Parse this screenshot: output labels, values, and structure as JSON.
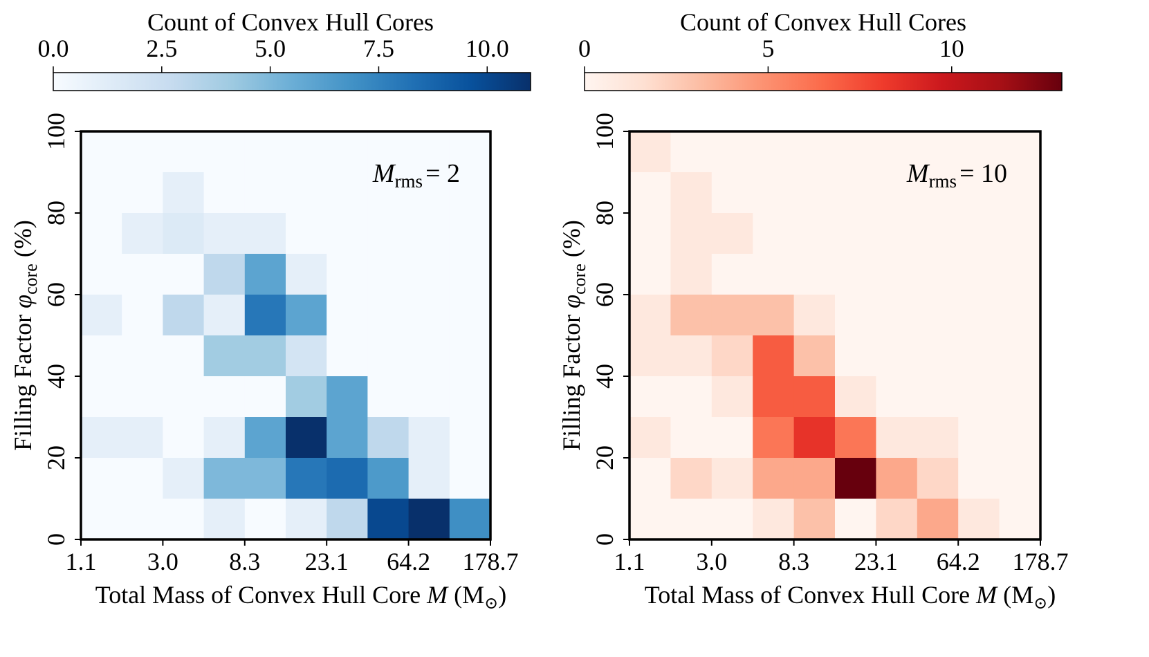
{
  "chart_data": [
    {
      "type": "heatmap",
      "colormap": "Blues",
      "colormap_stops": [
        "#f7fbff",
        "#deebf7",
        "#c6dbef",
        "#9ecae1",
        "#6baed6",
        "#4292c6",
        "#2171b5",
        "#08519c",
        "#08306b"
      ],
      "annotation": {
        "symbol": "M",
        "subscript": "rms",
        "text": "= 2"
      },
      "colorbar": {
        "label": "Count of Convex Hull Cores",
        "range": [
          0,
          11
        ],
        "ticks": [
          0,
          2.5,
          5,
          7.5,
          10
        ],
        "tick_labels": [
          "0.0",
          "2.5",
          "5.0",
          "7.5",
          "10.0"
        ]
      },
      "xlabel": {
        "prefix": "Total Mass of Convex Hull Core ",
        "symbol": "M",
        "units_open": " (M",
        "sun_symbol": "⊙",
        "units_close": ")"
      },
      "ylabel": {
        "prefix": "Filling Factor ",
        "symbol": "φ",
        "subscript": "core",
        "suffix": " (%)"
      },
      "x_scale": "log",
      "x_bins": 10,
      "x_tick_labels": [
        "1.1",
        "3.0",
        "8.3",
        "23.1",
        "64.2",
        "178.7"
      ],
      "y_range": [
        0,
        100
      ],
      "y_bins": 10,
      "y_ticks": [
        0,
        20,
        40,
        60,
        80,
        100
      ],
      "counts_rows_top_to_bottom": [
        [
          0,
          0,
          0,
          0,
          0,
          0,
          0,
          0,
          0,
          0
        ],
        [
          0,
          0,
          1,
          0,
          0,
          0,
          0,
          0,
          0,
          0
        ],
        [
          0,
          1,
          1.5,
          1,
          1,
          0,
          0,
          0,
          0,
          0
        ],
        [
          0,
          0,
          0,
          3,
          6,
          1,
          0,
          0,
          0,
          0
        ],
        [
          1,
          0,
          3,
          1,
          8,
          6,
          0,
          0,
          0,
          0
        ],
        [
          0,
          0,
          0,
          4,
          4,
          2,
          0,
          0,
          0,
          0
        ],
        [
          0,
          0,
          0,
          0,
          0,
          4,
          6,
          0,
          0,
          0
        ],
        [
          1,
          1,
          0,
          1,
          6,
          11,
          6,
          3,
          1,
          0
        ],
        [
          0,
          0,
          1,
          5,
          5,
          8,
          8.5,
          6.5,
          1,
          0
        ],
        [
          0,
          0,
          0,
          1,
          0,
          1,
          3,
          10,
          11,
          7
        ]
      ]
    },
    {
      "type": "heatmap",
      "colormap": "Reds",
      "colormap_stops": [
        "#fff5f0",
        "#fee0d2",
        "#fcbba1",
        "#fc9272",
        "#fb6a4a",
        "#ef3b2c",
        "#cb181d",
        "#a50f15",
        "#67000d"
      ],
      "annotation": {
        "symbol": "M",
        "subscript": "rms",
        "text": "= 10"
      },
      "colorbar": {
        "label": "Count of Convex Hull Cores",
        "range": [
          0,
          13
        ],
        "ticks": [
          0,
          5,
          10
        ],
        "tick_labels": [
          "0",
          "5",
          "10"
        ]
      },
      "xlabel": {
        "prefix": "Total Mass of Convex Hull Core ",
        "symbol": "M",
        "units_open": " (M",
        "sun_symbol": "⊙",
        "units_close": ")"
      },
      "ylabel": {
        "prefix": "Filling Factor ",
        "symbol": "φ",
        "subscript": "core",
        "suffix": " (%)"
      },
      "x_scale": "log",
      "x_bins": 10,
      "x_tick_labels": [
        "1.1",
        "3.0",
        "8.3",
        "23.1",
        "64.2",
        "178.7"
      ],
      "y_range": [
        0,
        100
      ],
      "y_bins": 10,
      "y_ticks": [
        0,
        20,
        40,
        60,
        80,
        100
      ],
      "counts_rows_top_to_bottom": [
        [
          1,
          0,
          0,
          0,
          0,
          0,
          0,
          0,
          0,
          0
        ],
        [
          0,
          1,
          0,
          0,
          0,
          0,
          0,
          0,
          0,
          0
        ],
        [
          0,
          1,
          1,
          0,
          0,
          0,
          0,
          0,
          0,
          0
        ],
        [
          0,
          1,
          0,
          0,
          0,
          0,
          0,
          0,
          0,
          0
        ],
        [
          1,
          3,
          3,
          3,
          1,
          0,
          0,
          0,
          0,
          0
        ],
        [
          1,
          1,
          2,
          7,
          3,
          0,
          0,
          0,
          0,
          0
        ],
        [
          0,
          0,
          1,
          7,
          7,
          1,
          0,
          0,
          0,
          0
        ],
        [
          1,
          0,
          0,
          6,
          8.5,
          6,
          1,
          1,
          0,
          0
        ],
        [
          0,
          2,
          1,
          4,
          4,
          13,
          4,
          2,
          0,
          0
        ],
        [
          0,
          0,
          0,
          1,
          3,
          0,
          2,
          4,
          1,
          0
        ]
      ]
    }
  ]
}
